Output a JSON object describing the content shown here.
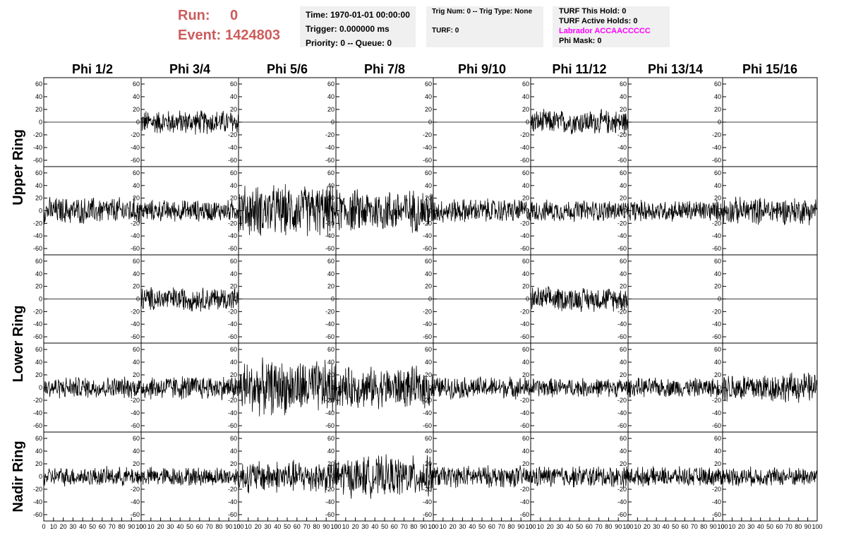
{
  "header": {
    "run_label": "Run:",
    "run_value": "0",
    "event_label": "Event:",
    "event_value": "1424803"
  },
  "time_box": {
    "time": "Time: 1970-01-01 00:00:00",
    "trigger": "Trigger: 0.000000 ms",
    "priority": "Priority: 0 -- Queue: 0"
  },
  "trig_box": {
    "trig": "Trig Num: 0 -- Trig Type: None",
    "turf": "TURF: 0"
  },
  "turf_box": {
    "this_hold": "TURF This Hold: 0",
    "active_holds": "TURF Active Holds: 0",
    "labrador": "Labrador ACCAACCCCC",
    "phi_mask": "Phi Mask: 0",
    "labrador_color": "#ff00ff"
  },
  "accent_color": "#cd5c5c",
  "columns": [
    "Phi 1/2",
    "Phi 3/4",
    "Phi 5/6",
    "Phi 7/8",
    "Phi 9/10",
    "Phi 11/12",
    "Phi 13/14",
    "Phi 15/16"
  ],
  "ring_labels": [
    "Upper Ring",
    "Lower Ring",
    "Nadir Ring"
  ],
  "y_ticks": [
    "60",
    "40",
    "20",
    "0",
    "-20",
    "-40",
    "-60"
  ],
  "x_ticks": [
    "0",
    "10",
    "20",
    "30",
    "40",
    "50",
    "60",
    "70",
    "80",
    "90",
    "100"
  ],
  "chart_data": {
    "type": "line",
    "title": "",
    "xlim": [
      0,
      100
    ],
    "ylim": [
      -70,
      70
    ],
    "rows": 5,
    "cols": 8,
    "grid": false,
    "amplitude": [
      [
        0,
        18,
        0,
        0,
        0,
        18,
        0,
        0
      ],
      [
        20,
        16,
        38,
        32,
        18,
        16,
        16,
        20
      ],
      [
        0,
        18,
        0,
        0,
        0,
        18,
        0,
        0
      ],
      [
        16,
        18,
        40,
        30,
        16,
        14,
        14,
        22
      ],
      [
        14,
        14,
        24,
        30,
        16,
        16,
        14,
        14
      ]
    ]
  }
}
